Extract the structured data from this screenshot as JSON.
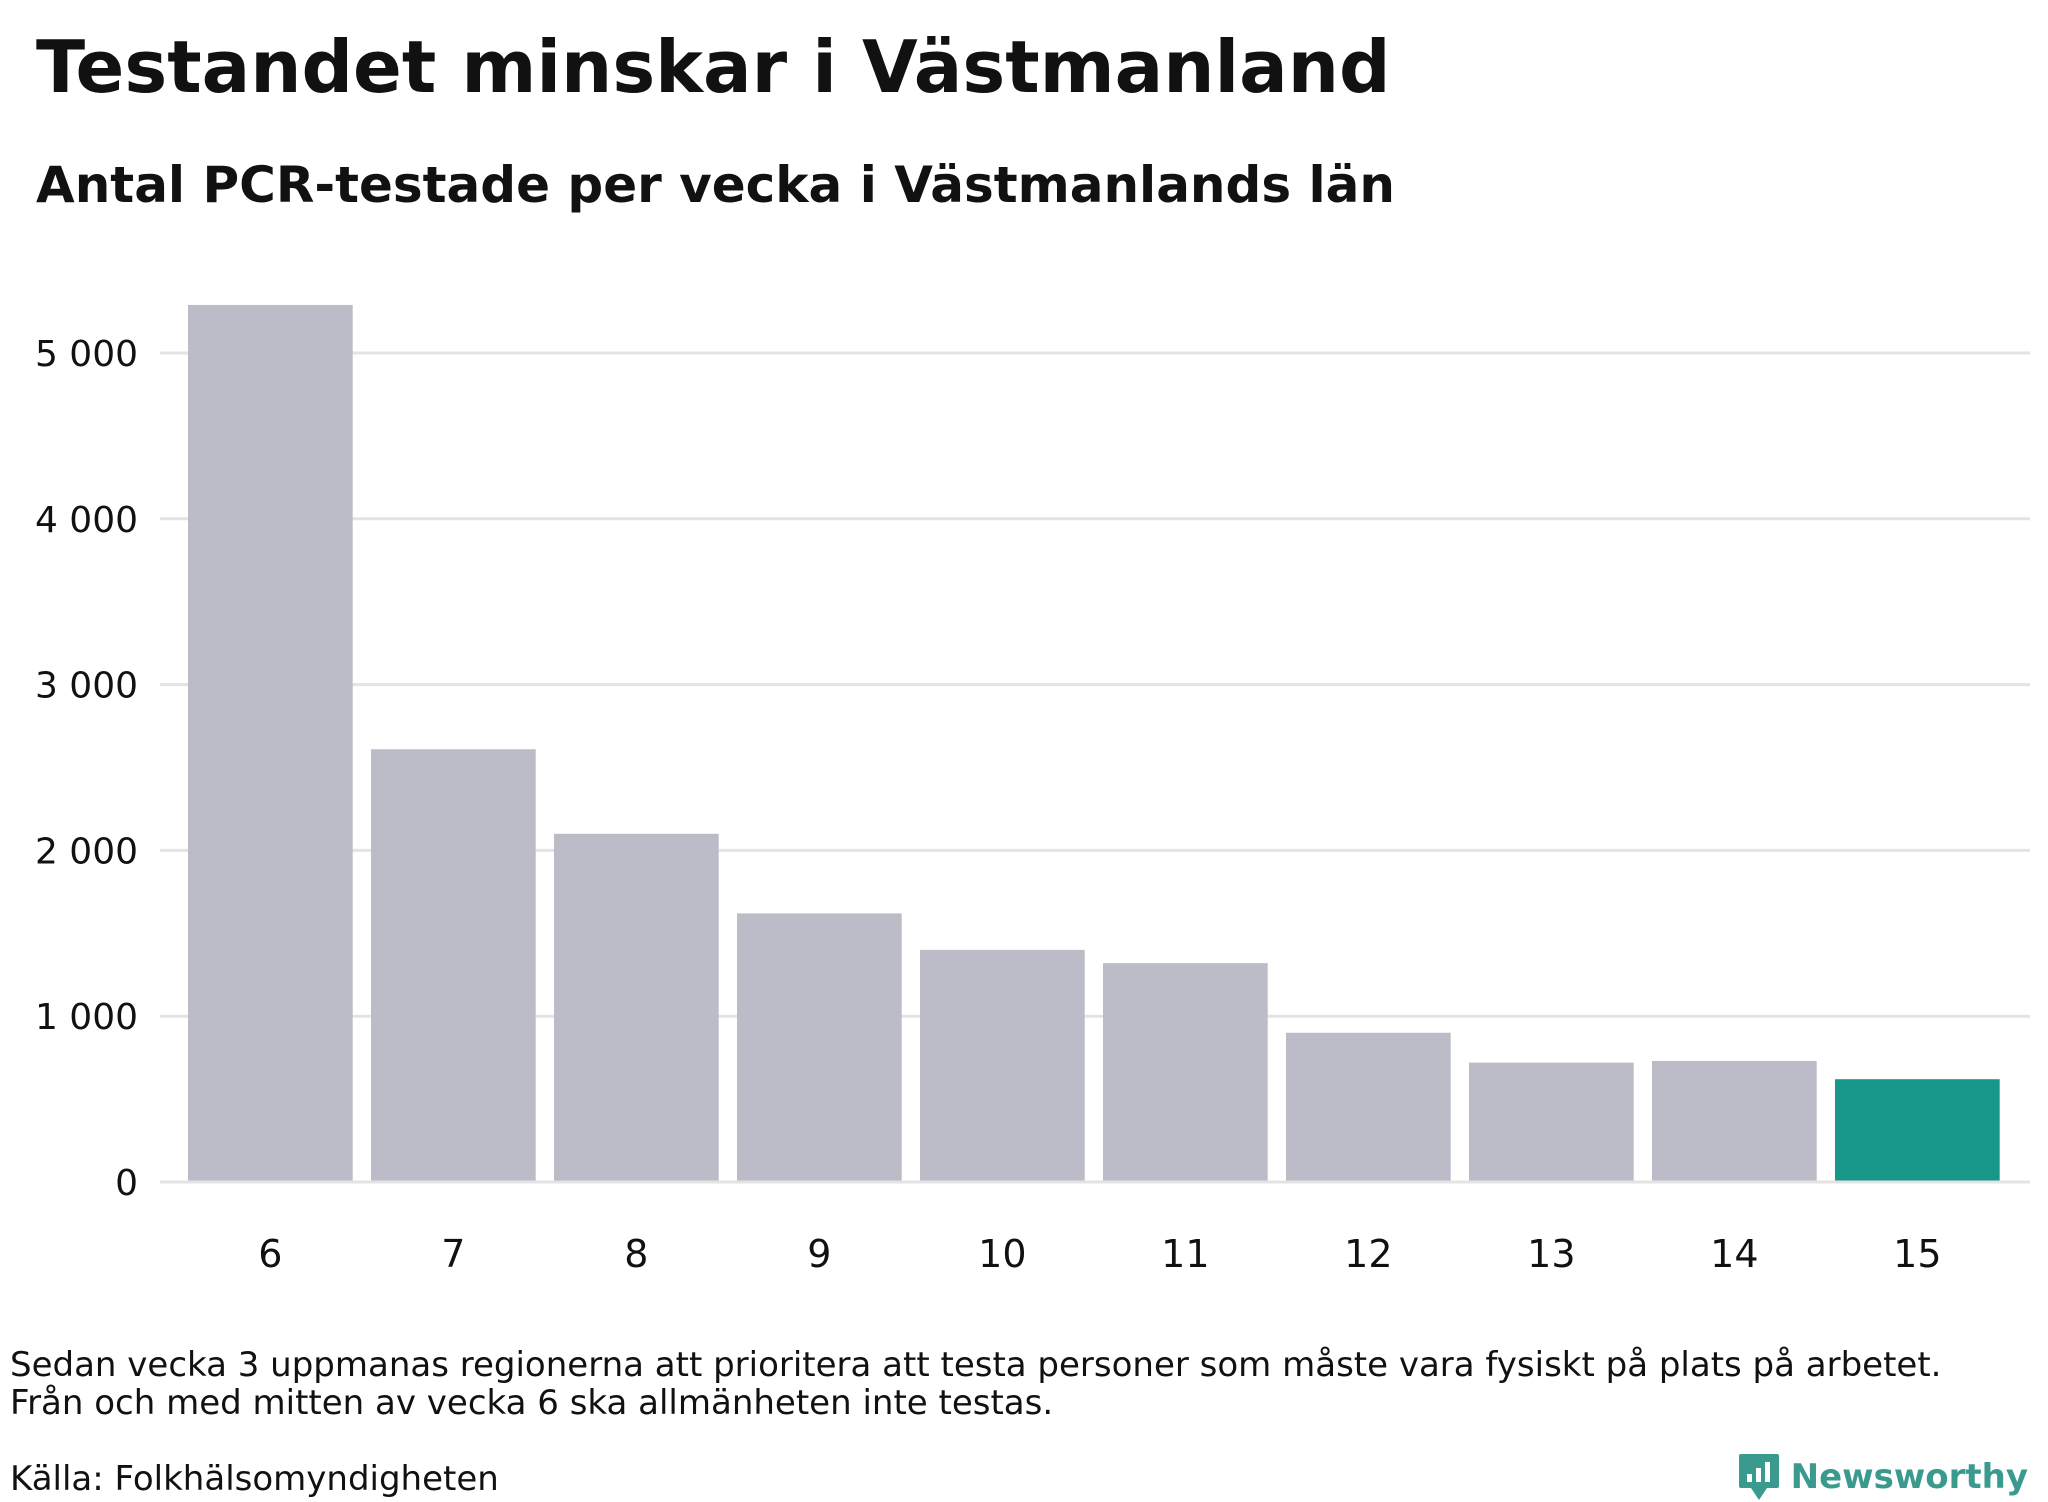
{
  "title": "Testandet minskar i Västmanland",
  "subtitle": "Antal PCR-testade per vecka i Västmanlands län",
  "notes": [
    "Sedan vecka 3 uppmanas regionerna att prioritera att testa personer som måste vara fysiskt på plats på arbetet.",
    "Från och med mitten av vecka 6 ska allmänheten inte testas."
  ],
  "source": "Källa: Folkhälsomyndigheten",
  "brand": {
    "name": "Newsworthy",
    "icon": "newsworthy-logo-icon"
  },
  "colors": {
    "bar": "#bcbbc8",
    "highlight": "#17968a",
    "grid": "#e3e3e3",
    "text": "#111111",
    "brand": "#3a9a8e"
  },
  "chart_data": {
    "type": "bar",
    "title": "Testandet minskar i Västmanland",
    "subtitle": "Antal PCR-testade per vecka i Västmanlands län",
    "xlabel": "",
    "ylabel": "",
    "categories": [
      "6",
      "7",
      "8",
      "9",
      "10",
      "11",
      "12",
      "13",
      "14",
      "15"
    ],
    "values": [
      5290,
      2610,
      2100,
      1620,
      1400,
      1320,
      900,
      720,
      730,
      620
    ],
    "highlight_index": 9,
    "ylim": [
      0,
      5300
    ],
    "yticks": [
      0,
      1000,
      2000,
      3000,
      4000,
      5000
    ],
    "ytick_labels": [
      "0",
      "1 000",
      "2 000",
      "3 000",
      "4 000",
      "5 000"
    ],
    "grid": true,
    "legend": "none"
  }
}
